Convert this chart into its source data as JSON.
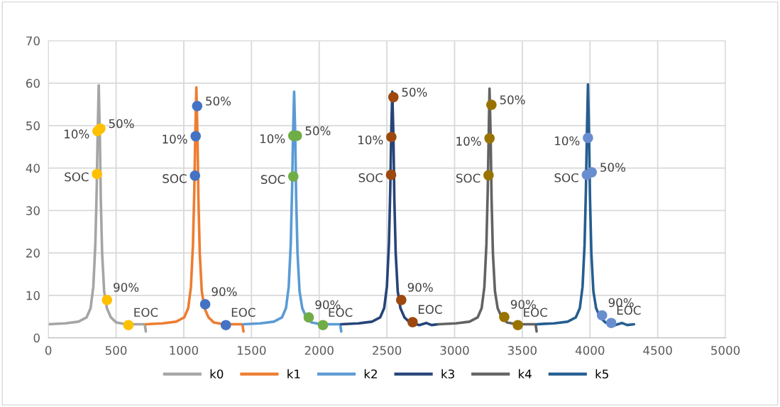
{
  "chart_data": {
    "type": "line",
    "xlim": [
      0,
      5000
    ],
    "xticks": [
      0,
      500,
      1000,
      1500,
      2000,
      2500,
      3000,
      3500,
      4000,
      4500,
      5000
    ],
    "ylim": [
      0,
      70
    ],
    "yticks": [
      0,
      10,
      20,
      30,
      40,
      50,
      60,
      70
    ],
    "grid": true,
    "legend": "bottom",
    "marker": "none",
    "line_style": "solid",
    "series": [
      {
        "name": "k0",
        "color": "#a5a5a5",
        "x": [
          0,
          122,
          222,
          282,
          312,
          332,
          347,
          357,
          364,
          372,
          380,
          387,
          397,
          412,
          432,
          462,
          502,
          572,
          662,
          712,
          720
        ],
        "values": [
          3.2,
          3.4,
          3.8,
          4.8,
          7,
          12,
          22,
          35,
          48,
          59.5,
          48,
          33,
          20,
          11,
          7,
          4.8,
          3.6,
          3.2,
          3.2,
          3.2,
          1.5
        ]
      },
      {
        "name": "k1",
        "color": "#ed7d31",
        "x": [
          720,
          843,
          943,
          1003,
          1033,
          1053,
          1068,
          1078,
          1085,
          1093,
          1101,
          1108,
          1118,
          1133,
          1153,
          1183,
          1223,
          1293,
          1383,
          1433,
          1441
        ],
        "values": [
          3.2,
          3.4,
          3.8,
          4.8,
          7,
          12,
          22,
          35,
          48,
          59,
          48,
          33,
          20,
          11,
          7,
          4.8,
          3.6,
          3.2,
          3.2,
          3.2,
          1.5
        ]
      },
      {
        "name": "k2",
        "color": "#5b9bd5",
        "x": [
          1441,
          1565,
          1665,
          1725,
          1755,
          1775,
          1790,
          1800,
          1807,
          1815,
          1823,
          1830,
          1840,
          1855,
          1875,
          1905,
          1945,
          2015,
          2105,
          2155,
          2163
        ],
        "values": [
          3.2,
          3.4,
          3.8,
          4.8,
          7,
          12,
          22,
          35,
          48,
          58,
          48,
          33,
          20,
          11,
          7,
          4.8,
          3.6,
          3.2,
          3.2,
          3.2,
          1.5
        ]
      },
      {
        "name": "k3",
        "color": "#264478",
        "x": [
          2163,
          2290,
          2390,
          2450,
          2480,
          2500,
          2515,
          2525,
          2532,
          2540,
          2548,
          2555,
          2565,
          2580,
          2600,
          2630,
          2670,
          2740,
          2790,
          2830,
          2880
        ],
        "values": [
          3.2,
          3.4,
          3.8,
          4.8,
          7,
          12,
          22,
          35,
          48,
          58,
          48,
          33,
          20,
          11,
          7,
          4.8,
          3.6,
          3.0,
          3.5,
          3.0,
          3.2
        ]
      },
      {
        "name": "k4",
        "color": "#636363",
        "x": [
          2880,
          3010,
          3110,
          3170,
          3200,
          3220,
          3235,
          3245,
          3252,
          3258,
          3266,
          3273,
          3283,
          3298,
          3318,
          3348,
          3388,
          3458,
          3548,
          3598,
          3606
        ],
        "values": [
          3.2,
          3.4,
          3.8,
          4.8,
          7,
          12,
          22,
          35,
          48,
          58.7,
          48,
          33,
          20,
          11,
          7,
          4.8,
          3.6,
          3.2,
          3.2,
          3.2,
          1.5
        ]
      },
      {
        "name": "k5",
        "color": "#255e91",
        "x": [
          3606,
          3735,
          3835,
          3895,
          3925,
          3945,
          3960,
          3970,
          3977,
          3985,
          3993,
          4000,
          4010,
          4025,
          4045,
          4075,
          4115,
          4185,
          4235,
          4275,
          4325
        ],
        "values": [
          3.2,
          3.4,
          3.8,
          4.8,
          7,
          12,
          22,
          35,
          48,
          59.7,
          48,
          33,
          20,
          11,
          7,
          4.8,
          3.6,
          3.0,
          3.5,
          3.0,
          3.2
        ]
      },
      {
        "type": "scatter",
        "marker": "circle",
        "color": "#ffc000",
        "x": [
          359,
          363,
          384,
          433,
          591
        ],
        "values": [
          38.6,
          48.7,
          49.3,
          8.9,
          3.0
        ]
      },
      {
        "type": "scatter",
        "marker": "circle",
        "color": "#4472c4",
        "x": [
          1083,
          1088,
          1099,
          1158,
          1311
        ],
        "values": [
          38.2,
          47.5,
          54.6,
          7.9,
          3.0
        ]
      },
      {
        "type": "scatter",
        "marker": "circle",
        "color": "#70ad47",
        "x": [
          1809,
          1809,
          1835,
          1923,
          2028
        ],
        "values": [
          38.0,
          47.6,
          47.6,
          4.8,
          3.0
        ]
      },
      {
        "type": "scatter",
        "marker": "circle",
        "color": "#9e480e",
        "x": [
          2531,
          2533,
          2548,
          2606,
          2690
        ],
        "values": [
          38.4,
          47.3,
          56.7,
          8.9,
          3.7
        ]
      },
      {
        "type": "scatter",
        "marker": "circle",
        "color": "#997300",
        "x": [
          3251,
          3258,
          3272,
          3367,
          3467
        ],
        "values": [
          38.3,
          47.0,
          54.9,
          4.9,
          3.0
        ]
      },
      {
        "type": "scatter",
        "marker": "circle",
        "color": "#698ed0",
        "x": [
          3977,
          3985,
          4013,
          4089,
          4157
        ],
        "values": [
          38.4,
          47.1,
          39.0,
          5.3,
          3.5
        ]
      }
    ],
    "annotations": [
      {
        "text": "SOC",
        "x": 359,
        "y": 38.6
      },
      {
        "text": "10%",
        "x": 363,
        "y": 48.7
      },
      {
        "text": "50%",
        "x": 384,
        "y": 49.3
      },
      {
        "text": "90%",
        "x": 433,
        "y": 8.9
      },
      {
        "text": "EOC",
        "x": 591,
        "y": 3.0
      },
      {
        "text": "SOC",
        "x": 1083,
        "y": 38.2
      },
      {
        "text": "10%",
        "x": 1088,
        "y": 47.5
      },
      {
        "text": "50%",
        "x": 1099,
        "y": 54.6
      },
      {
        "text": "90%",
        "x": 1158,
        "y": 7.9
      },
      {
        "text": "EOC",
        "x": 1311,
        "y": 3.0
      },
      {
        "text": "SOC",
        "x": 1809,
        "y": 38.0
      },
      {
        "text": "10%",
        "x": 1809,
        "y": 47.6
      },
      {
        "text": "50%",
        "x": 1835,
        "y": 47.6
      },
      {
        "text": "90%",
        "x": 1923,
        "y": 4.8
      },
      {
        "text": "EOC",
        "x": 2028,
        "y": 3.0
      },
      {
        "text": "SOC",
        "x": 2531,
        "y": 38.4
      },
      {
        "text": "10%",
        "x": 2533,
        "y": 47.3
      },
      {
        "text": "50%",
        "x": 2548,
        "y": 56.7
      },
      {
        "text": "90%",
        "x": 2606,
        "y": 8.9
      },
      {
        "text": "EOC",
        "x": 2690,
        "y": 3.7
      },
      {
        "text": "SOC",
        "x": 3251,
        "y": 38.3
      },
      {
        "text": "10%",
        "x": 3258,
        "y": 47.0
      },
      {
        "text": "50%",
        "x": 3272,
        "y": 54.9
      },
      {
        "text": "90%",
        "x": 3367,
        "y": 4.9
      },
      {
        "text": "EOC",
        "x": 3467,
        "y": 3.0
      },
      {
        "text": "SOC",
        "x": 3977,
        "y": 38.4
      },
      {
        "text": "10%",
        "x": 3985,
        "y": 47.1
      },
      {
        "text": "50%",
        "x": 4013,
        "y": 39.0
      },
      {
        "text": "90%",
        "x": 4089,
        "y": 5.3
      },
      {
        "text": "EOC",
        "x": 4157,
        "y": 3.5
      }
    ]
  }
}
